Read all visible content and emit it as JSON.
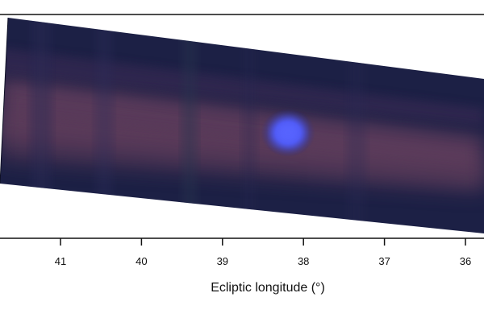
{
  "chart_data": {
    "type": "image",
    "title": "",
    "xlabel": "Ecliptic longitude (°)",
    "ylabel": "",
    "x_axis_direction": "decreasing-left-to-right",
    "xticks": [
      41,
      40,
      39,
      38,
      37,
      36
    ],
    "xtick_labels": [
      "41",
      "40",
      "39",
      "38",
      "37",
      "36"
    ],
    "xlim": [
      42.0,
      35.8
    ],
    "grid": false,
    "legend": "none",
    "colors": {
      "sky_background": "#1a1f42",
      "band_emission": "#7a4a5c",
      "bright_source": "#4b55ff",
      "axes": "#111111"
    }
  }
}
